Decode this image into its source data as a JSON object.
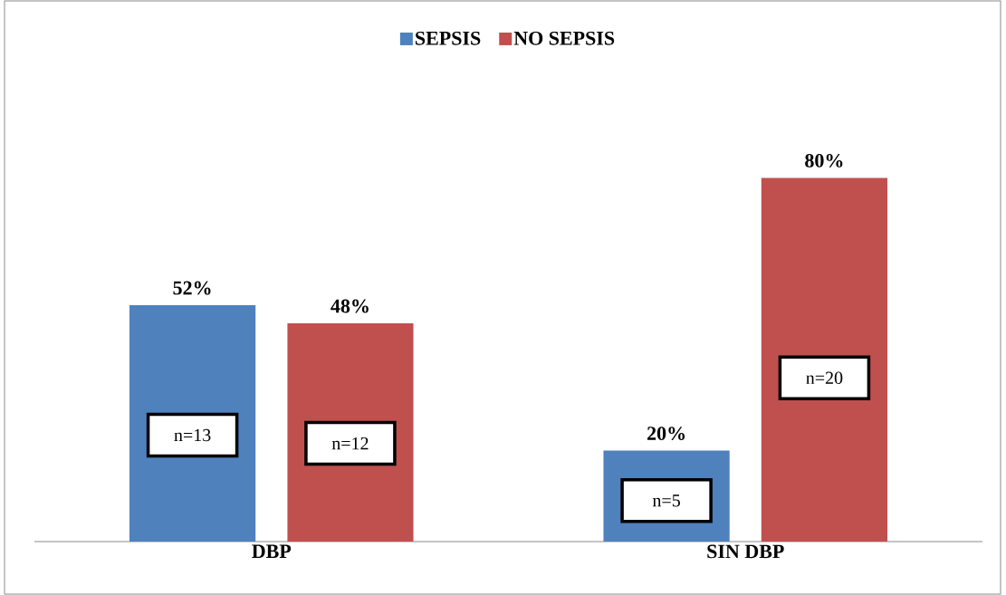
{
  "chart_data": {
    "type": "bar",
    "categories": [
      "DBP",
      "SIN DBP"
    ],
    "series": [
      {
        "name": "SEPSIS",
        "color": "#4f81bd",
        "values": [
          52,
          20
        ],
        "value_labels": [
          "52%",
          "20%"
        ]
      },
      {
        "name": "NO SEPSIS",
        "color": "#c0504d",
        "values": [
          48,
          80
        ],
        "value_labels": [
          "48%",
          "80%"
        ]
      }
    ],
    "tick_labels": "x",
    "legend": "top",
    "grid": false,
    "annotations": [
      "n=13",
      "n=12",
      "n=5",
      "n=20"
    ]
  }
}
